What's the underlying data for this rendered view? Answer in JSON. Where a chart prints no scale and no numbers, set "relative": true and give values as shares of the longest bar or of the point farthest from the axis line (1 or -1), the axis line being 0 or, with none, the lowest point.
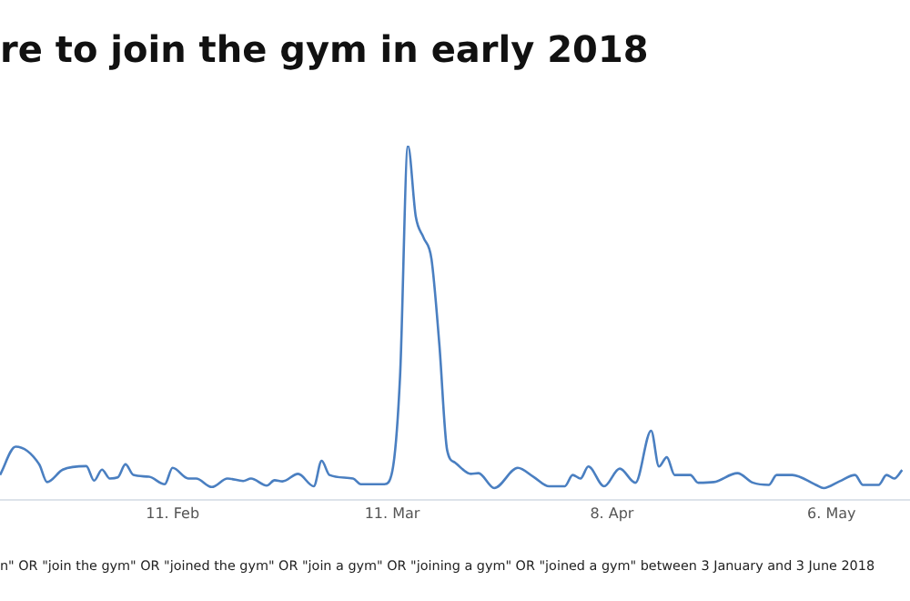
{
  "chart_data": {
    "type": "line",
    "title": "re to join the gym in early 2018",
    "relative": true,
    "x": [
      "2018-01-20",
      "2018-01-22",
      "2018-01-25",
      "2018-01-26",
      "2018-01-28",
      "2018-01-31",
      "2018-02-01",
      "2018-02-02",
      "2018-02-03",
      "2018-02-04",
      "2018-02-05",
      "2018-02-06",
      "2018-02-08",
      "2018-02-10",
      "2018-02-11",
      "2018-02-13",
      "2018-02-14",
      "2018-02-16",
      "2018-02-18",
      "2018-02-20",
      "2018-02-21",
      "2018-02-23",
      "2018-02-24",
      "2018-02-25",
      "2018-02-27",
      "2018-03-01",
      "2018-03-02",
      "2018-03-03",
      "2018-03-06",
      "2018-03-07",
      "2018-03-10",
      "2018-03-11",
      "2018-03-12",
      "2018-03-13",
      "2018-03-14",
      "2018-03-15",
      "2018-03-16",
      "2018-03-17",
      "2018-03-18",
      "2018-03-19",
      "2018-03-21",
      "2018-03-22",
      "2018-03-24",
      "2018-03-27",
      "2018-03-29",
      "2018-03-31",
      "2018-04-02",
      "2018-04-03",
      "2018-04-04",
      "2018-04-05",
      "2018-04-07",
      "2018-04-09",
      "2018-04-11",
      "2018-04-13",
      "2018-04-14",
      "2018-04-15",
      "2018-04-16",
      "2018-04-18",
      "2018-04-19",
      "2018-04-21",
      "2018-04-24",
      "2018-04-26",
      "2018-04-28",
      "2018-04-29",
      "2018-05-01",
      "2018-05-04",
      "2018-05-05",
      "2018-05-07",
      "2018-05-09",
      "2018-05-10",
      "2018-05-12",
      "2018-05-13",
      "2018-05-14",
      "2018-05-15"
    ],
    "series": [
      {
        "color": "#4a7fc1",
        "values": [
          0.07,
          0.15,
          0.1,
          0.05,
          0.085,
          0.095,
          0.054,
          0.085,
          0.06,
          0.063,
          0.1,
          0.07,
          0.065,
          0.044,
          0.09,
          0.06,
          0.06,
          0.036,
          0.06,
          0.053,
          0.06,
          0.04,
          0.055,
          0.052,
          0.073,
          0.038,
          0.11,
          0.07,
          0.06,
          0.044,
          0.044,
          0.08,
          0.35,
          1,
          0.8,
          0.74,
          0.68,
          0.44,
          0.14,
          0.105,
          0.073,
          0.075,
          0.033,
          0.09,
          0.065,
          0.038,
          0.038,
          0.07,
          0.06,
          0.094,
          0.038,
          0.088,
          0.048,
          0.195,
          0.094,
          0.12,
          0.07,
          0.07,
          0.048,
          0.05,
          0.075,
          0.048,
          0.042,
          0.07,
          0.07,
          0.042,
          0.033,
          0.052,
          0.07,
          0.042,
          0.042,
          0.07,
          0.06,
          0.084
        ]
      }
    ],
    "xlim": [
      "2018-01-20",
      "2018-05-16"
    ],
    "xticks": [
      {
        "value": "2018-02-11",
        "label": "11. Feb"
      },
      {
        "value": "2018-03-11",
        "label": "11. Mar"
      },
      {
        "value": "2018-04-08",
        "label": "8. Apr"
      },
      {
        "value": "2018-05-06",
        "label": "6. May"
      }
    ],
    "grid": false,
    "legend": false,
    "marker": "none",
    "line_style": "solid",
    "annotations": [
      "n\" OR \"join the gym\" OR \"joined the gym\" OR \"join a gym\" OR \"joining a gym\" OR \"joined a gym\" between 3 January and 3 June 2018"
    ]
  }
}
